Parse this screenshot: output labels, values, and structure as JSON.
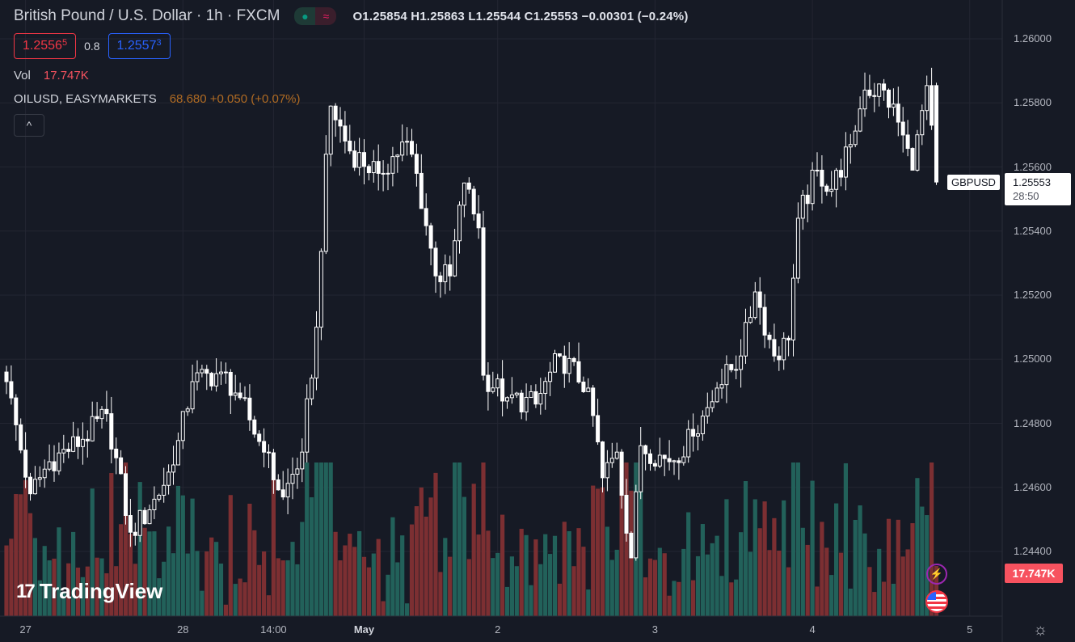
{
  "header": {
    "title": "British Pound / U.S. Dollar · 1h · FXCM",
    "status_a": "●",
    "status_b": "≈",
    "ohlc": "O1.25854 H1.25863 L1.25544 C1.25553 −0.00301 (−0.24%)"
  },
  "trade": {
    "sell_main": "1.2556",
    "sell_pip": "5",
    "spread": "0.8",
    "buy_main": "1.2557",
    "buy_pip": "3"
  },
  "volume_legend": {
    "label": "Vol",
    "value": "17.747K"
  },
  "overlay_legend": {
    "label": "OILUSD, EASYMARKETS",
    "value": "68.680 +0.050 (+0.07%)"
  },
  "collapse_icon": "^",
  "price_tag": {
    "symbol": "GBPUSD",
    "price": "1.25553",
    "countdown": "28:50"
  },
  "volume_tag": "17.747K",
  "logo_text": "TradingView",
  "logo_mark": "17",
  "icons": {
    "bolt": "⚡",
    "gear": "☼"
  },
  "colors": {
    "up_volume": "#22615a",
    "down_volume": "#7c2f32",
    "candle": "#ffffff",
    "background": "#161a25",
    "grid": "#232632"
  },
  "chart_data": {
    "type": "candlestick",
    "symbol": "GBPUSD",
    "interval": "1h",
    "ylim": [
      1.2432,
      1.2612
    ],
    "yticks": [
      "1.26000",
      "1.25800",
      "1.25600",
      "1.25400",
      "1.25200",
      "1.25000",
      "1.24800",
      "1.24600",
      "1.24400"
    ],
    "xticks": [
      {
        "label": "27",
        "index": 4,
        "bold": false
      },
      {
        "label": "28",
        "index": 37,
        "bold": false
      },
      {
        "label": "14:00",
        "index": 56,
        "bold": false
      },
      {
        "label": "May",
        "index": 75,
        "bold": true
      },
      {
        "label": "2",
        "index": 103,
        "bold": false
      },
      {
        "label": "3",
        "index": 136,
        "bold": false
      },
      {
        "label": "4",
        "index": 169,
        "bold": false
      },
      {
        "label": "5",
        "index": 202,
        "bold": false
      }
    ],
    "candle_count": 196,
    "close_anchors": [
      [
        0,
        1.2493
      ],
      [
        5,
        1.2458
      ],
      [
        9,
        1.2468
      ],
      [
        16,
        1.2475
      ],
      [
        21,
        1.2483
      ],
      [
        26,
        1.2446
      ],
      [
        30,
        1.2453
      ],
      [
        35,
        1.2467
      ],
      [
        39,
        1.2493
      ],
      [
        45,
        1.2496
      ],
      [
        49,
        1.2488
      ],
      [
        54,
        1.2471
      ],
      [
        58,
        1.2457
      ],
      [
        62,
        1.2471
      ],
      [
        65,
        1.251
      ],
      [
        67,
        1.2564
      ],
      [
        68,
        1.2579
      ],
      [
        72,
        1.2565
      ],
      [
        78,
        1.2558
      ],
      [
        84,
        1.2568
      ],
      [
        86,
        1.2558
      ],
      [
        90,
        1.2526
      ],
      [
        93,
        1.2526
      ],
      [
        96,
        1.2555
      ],
      [
        99,
        1.2541
      ],
      [
        100,
        1.2495
      ],
      [
        105,
        1.2488
      ],
      [
        111,
        1.2486
      ],
      [
        116,
        1.2501
      ],
      [
        122,
        1.2491
      ],
      [
        125,
        1.2463
      ],
      [
        128,
        1.2471
      ],
      [
        131,
        1.2438
      ],
      [
        133,
        1.2473
      ],
      [
        139,
        1.2468
      ],
      [
        144,
        1.2476
      ],
      [
        149,
        1.2491
      ],
      [
        154,
        1.2501
      ],
      [
        157,
        1.2521
      ],
      [
        161,
        1.2501
      ],
      [
        164,
        1.2506
      ],
      [
        166,
        1.2544
      ],
      [
        170,
        1.2559
      ],
      [
        173,
        1.2553
      ],
      [
        177,
        1.2567
      ],
      [
        180,
        1.2584
      ],
      [
        184,
        1.2584
      ],
      [
        187,
        1.2574
      ],
      [
        190,
        1.2559
      ],
      [
        193,
        1.25854
      ],
      [
        195,
        1.25553
      ]
    ],
    "last": {
      "open": 1.25854,
      "high": 1.25863,
      "low": 1.25544,
      "close": 1.25553,
      "volume": 17747
    }
  }
}
